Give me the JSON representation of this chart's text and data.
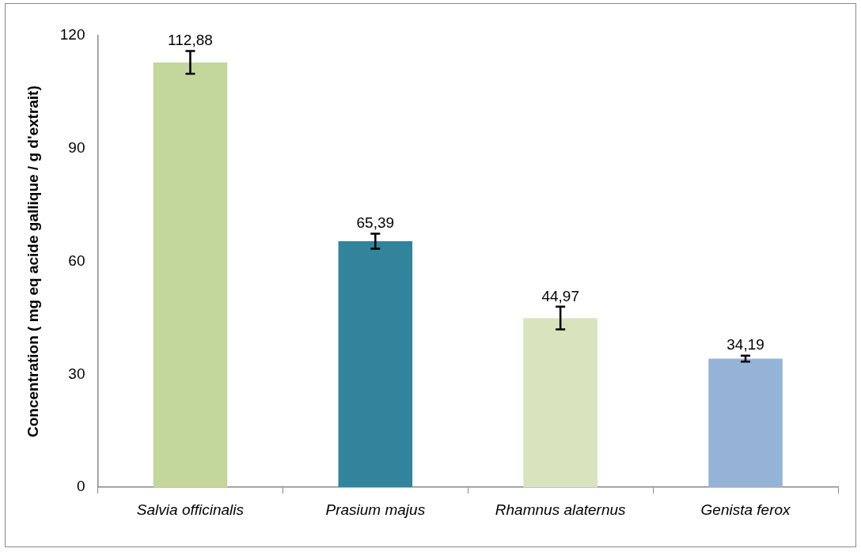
{
  "chart_data": {
    "type": "bar",
    "ylabel": "Concentration ( mg eq acide gallique / g d'extrait)",
    "categories": [
      "Salvia officinalis",
      "Prasium majus",
      "Rhamnus alaternus",
      "Genista ferox"
    ],
    "values": [
      112.88,
      65.39,
      44.97,
      34.19
    ],
    "colors": [
      "#c3d69b",
      "#31849b",
      "#d7e4bd",
      "#95b3d7"
    ],
    "errors": [
      3,
      2,
      3,
      0.8
    ],
    "value_labels": [
      "112,88",
      "65,39",
      "44,97",
      "34,19"
    ],
    "ylim": [
      0,
      120
    ],
    "yticks": [
      0,
      30,
      60,
      90,
      120
    ],
    "grid": false
  }
}
